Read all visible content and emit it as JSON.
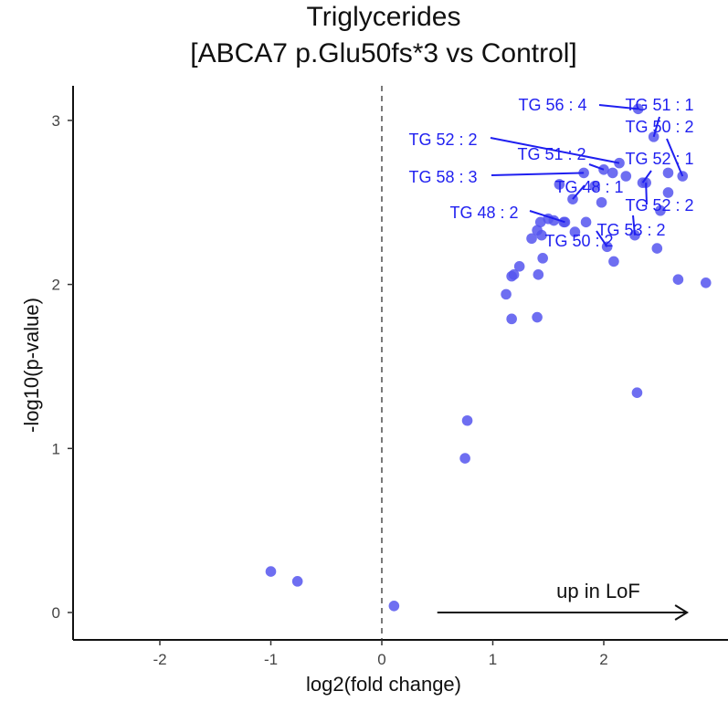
{
  "chart_data": {
    "type": "scatter",
    "title": [
      "Triglycerides",
      "[ABCA7 p.Glu50fs*3 vs Control]"
    ],
    "xlabel": "log2(fold change)",
    "ylabel": "-log10(p-value)",
    "xlim": [
      -2.78,
      2.92
    ],
    "ylim": [
      -0.16,
      3.22
    ],
    "x_ticks": [
      -2,
      -1,
      0,
      1,
      2
    ],
    "y_ticks": [
      0,
      1,
      2,
      3
    ],
    "grid": false,
    "reference_line": {
      "x": 0,
      "style": "dashed"
    },
    "point_color": "#5555ee",
    "label_color": "#1f1ff0",
    "points": [
      {
        "x": 2.31,
        "y": 3.07,
        "label": "TG 56 : 4"
      },
      {
        "x": 2.45,
        "y": 2.9,
        "label": "TG 51 : 1"
      },
      {
        "x": 2.71,
        "y": 2.66,
        "label": "TG 50 : 2"
      },
      {
        "x": 2.14,
        "y": 2.74,
        "label": "TG 52 : 2"
      },
      {
        "x": 2.0,
        "y": 2.7,
        "label": "TG 51 : 2"
      },
      {
        "x": 1.82,
        "y": 2.68,
        "label": "TG 58 : 3"
      },
      {
        "x": 2.35,
        "y": 2.62,
        "label": "TG 52 : 1"
      },
      {
        "x": 1.72,
        "y": 2.52,
        "label": "TG 48 : 1"
      },
      {
        "x": 2.38,
        "y": 2.62,
        "label": "TG 52 : 2"
      },
      {
        "x": 1.65,
        "y": 2.38,
        "label": "TG 48 : 2"
      },
      {
        "x": 2.03,
        "y": 2.23,
        "label": "TG 50 : 2"
      },
      {
        "x": 2.28,
        "y": 2.3,
        "label": "TG 53 : 2"
      },
      {
        "x": 2.58,
        "y": 2.68,
        "label": ""
      },
      {
        "x": 2.58,
        "y": 2.56,
        "label": ""
      },
      {
        "x": 2.2,
        "y": 2.66,
        "label": ""
      },
      {
        "x": 2.08,
        "y": 2.68,
        "label": ""
      },
      {
        "x": 1.92,
        "y": 2.6,
        "label": ""
      },
      {
        "x": 1.98,
        "y": 2.5,
        "label": ""
      },
      {
        "x": 1.84,
        "y": 2.38,
        "label": ""
      },
      {
        "x": 1.74,
        "y": 2.32,
        "label": ""
      },
      {
        "x": 1.6,
        "y": 2.61,
        "label": ""
      },
      {
        "x": 1.64,
        "y": 2.38,
        "label": ""
      },
      {
        "x": 1.5,
        "y": 2.4,
        "label": ""
      },
      {
        "x": 1.44,
        "y": 2.3,
        "label": ""
      },
      {
        "x": 1.4,
        "y": 2.33,
        "label": ""
      },
      {
        "x": 1.55,
        "y": 2.39,
        "label": ""
      },
      {
        "x": 1.43,
        "y": 2.38,
        "label": ""
      },
      {
        "x": 1.35,
        "y": 2.28,
        "label": ""
      },
      {
        "x": 2.51,
        "y": 2.45,
        "label": ""
      },
      {
        "x": 2.48,
        "y": 2.22,
        "label": ""
      },
      {
        "x": 2.09,
        "y": 2.14,
        "label": ""
      },
      {
        "x": 1.45,
        "y": 2.16,
        "label": ""
      },
      {
        "x": 1.24,
        "y": 2.11,
        "label": ""
      },
      {
        "x": 1.19,
        "y": 2.06,
        "label": ""
      },
      {
        "x": 1.17,
        "y": 2.05,
        "label": ""
      },
      {
        "x": 1.41,
        "y": 2.06,
        "label": ""
      },
      {
        "x": 1.12,
        "y": 1.94,
        "label": ""
      },
      {
        "x": 1.17,
        "y": 1.79,
        "label": ""
      },
      {
        "x": 1.4,
        "y": 1.8,
        "label": ""
      },
      {
        "x": 2.67,
        "y": 2.03,
        "label": ""
      },
      {
        "x": 2.92,
        "y": 2.01,
        "label": ""
      },
      {
        "x": 2.3,
        "y": 1.34,
        "label": ""
      },
      {
        "x": 0.77,
        "y": 1.17,
        "label": ""
      },
      {
        "x": 0.75,
        "y": 0.94,
        "label": ""
      },
      {
        "x": -1.0,
        "y": 0.25,
        "label": ""
      },
      {
        "x": -0.76,
        "y": 0.19,
        "label": ""
      },
      {
        "x": 0.11,
        "y": 0.04,
        "label": ""
      }
    ],
    "annotation": {
      "text": "up in LoF",
      "arrow_from": [
        0.5,
        0.0
      ],
      "arrow_to": [
        2.75,
        0.0
      ]
    }
  }
}
